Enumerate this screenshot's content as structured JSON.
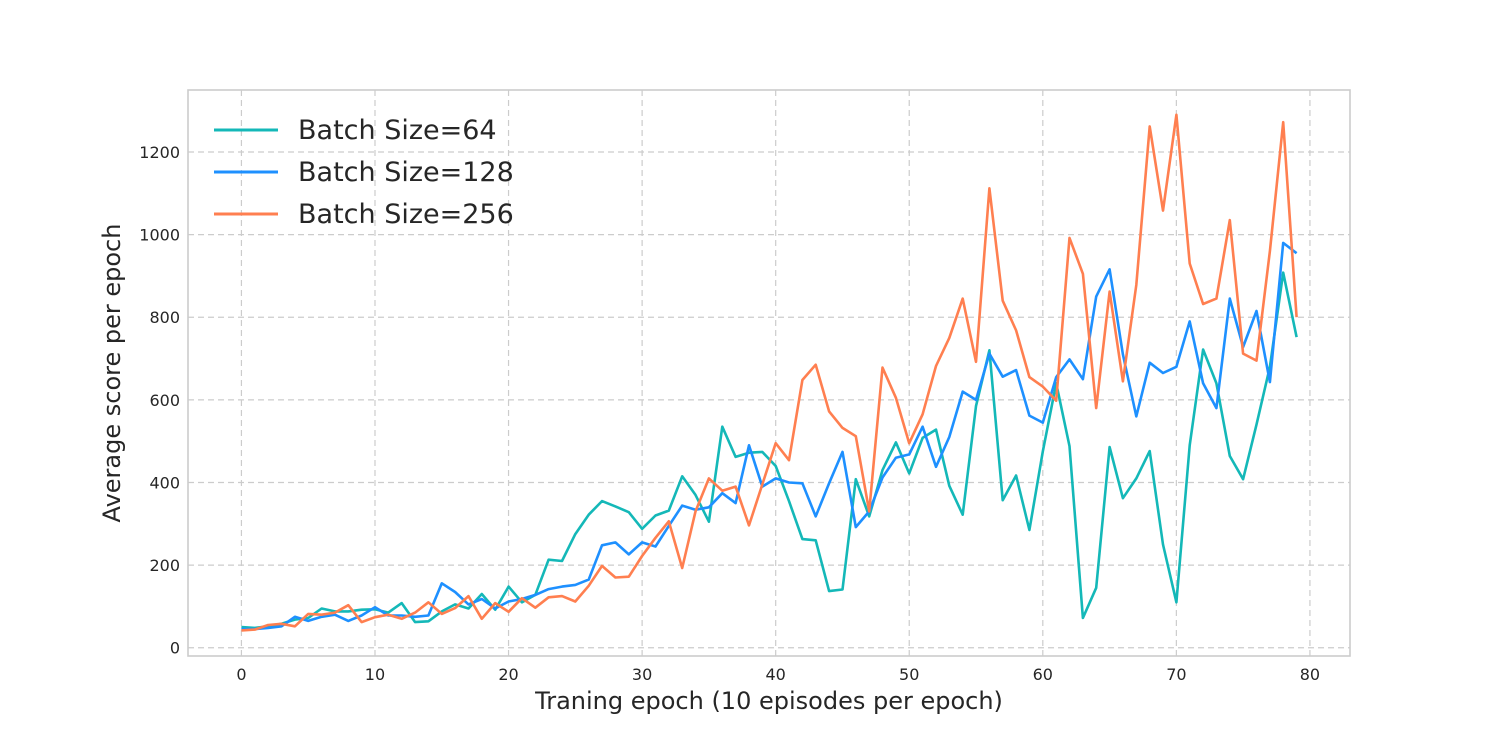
{
  "chart_data": {
    "type": "line",
    "title": "",
    "xlabel": "Traning epoch (10 episodes per epoch)",
    "ylabel": "Average score per epoch",
    "xlim": [
      -4,
      83
    ],
    "ylim": [
      -20,
      1350
    ],
    "xticks": [
      0,
      10,
      20,
      30,
      40,
      50,
      60,
      70,
      80
    ],
    "yticks": [
      0,
      200,
      400,
      600,
      800,
      1000,
      1200
    ],
    "grid": true,
    "legend_position": "top-left",
    "x": [
      0,
      1,
      2,
      3,
      4,
      5,
      6,
      7,
      8,
      9,
      10,
      11,
      12,
      13,
      14,
      15,
      16,
      17,
      18,
      19,
      20,
      21,
      22,
      23,
      24,
      25,
      26,
      27,
      28,
      29,
      30,
      31,
      32,
      33,
      34,
      35,
      36,
      37,
      38,
      39,
      40,
      41,
      42,
      43,
      44,
      45,
      46,
      47,
      48,
      49,
      50,
      51,
      52,
      53,
      54,
      55,
      56,
      57,
      58,
      59,
      60,
      61,
      62,
      63,
      64,
      65,
      66,
      67,
      68,
      69,
      70,
      71,
      72,
      73,
      74,
      75,
      76,
      77,
      78,
      79
    ],
    "series": [
      {
        "name": "Batch Size=64",
        "color": "#14b8b8",
        "values": [
          50,
          48,
          52,
          58,
          68,
          72,
          95,
          88,
          88,
          92,
          93,
          85,
          108,
          62,
          64,
          88,
          105,
          95,
          130,
          92,
          148,
          110,
          128,
          213,
          210,
          275,
          322,
          355,
          342,
          328,
          288,
          320,
          332,
          415,
          370,
          305,
          535,
          462,
          472,
          474,
          440,
          355,
          263,
          260,
          137,
          141,
          408,
          318,
          430,
          497,
          422,
          508,
          528,
          392,
          322,
          585,
          720,
          357,
          417,
          285,
          475,
          640,
          488,
          72,
          145,
          486,
          362,
          410,
          476,
          250,
          110,
          490,
          722,
          640,
          464,
          408,
          540,
          680,
          908,
          752
        ]
      },
      {
        "name": "Batch Size=128",
        "color": "#1e90ff",
        "values": [
          45,
          45,
          48,
          52,
          75,
          65,
          75,
          80,
          65,
          78,
          98,
          78,
          78,
          75,
          78,
          156,
          135,
          105,
          118,
          95,
          112,
          118,
          128,
          142,
          148,
          152,
          165,
          248,
          255,
          226,
          255,
          245,
          295,
          344,
          334,
          340,
          374,
          350,
          490,
          390,
          410,
          400,
          398,
          318,
          398,
          474,
          292,
          330,
          412,
          460,
          468,
          535,
          438,
          510,
          620,
          600,
          712,
          656,
          672,
          562,
          545,
          655,
          698,
          650,
          850,
          916,
          710,
          560,
          690,
          665,
          680,
          790,
          640,
          580,
          845,
          728,
          815,
          643,
          980,
          955
        ]
      },
      {
        "name": "Batch Size=256",
        "color": "#ff7f50",
        "values": [
          42,
          44,
          55,
          58,
          52,
          82,
          80,
          85,
          103,
          62,
          74,
          80,
          70,
          85,
          110,
          82,
          96,
          125,
          70,
          108,
          87,
          120,
          97,
          122,
          125,
          112,
          150,
          198,
          170,
          172,
          222,
          266,
          306,
          193,
          330,
          410,
          380,
          390,
          296,
          395,
          495,
          454,
          648,
          685,
          572,
          532,
          512,
          330,
          678,
          605,
          495,
          565,
          682,
          750,
          845,
          692,
          1112,
          840,
          768,
          655,
          632,
          598,
          992,
          905,
          580,
          862,
          645,
          878,
          1262,
          1058,
          1290,
          930,
          832,
          845,
          1035,
          712,
          695,
          960,
          1272,
          800
        ]
      }
    ]
  }
}
